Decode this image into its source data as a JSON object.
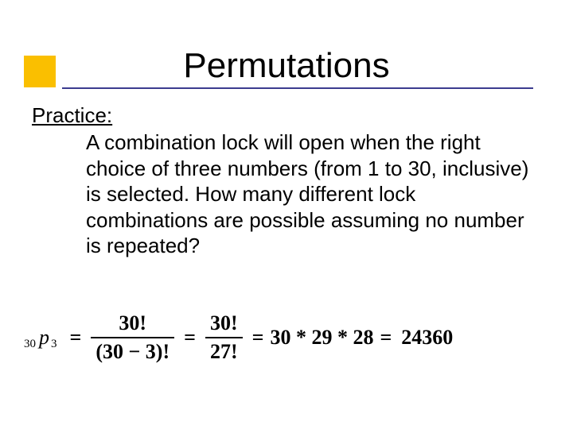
{
  "slide": {
    "title": "Permutations",
    "practice_label": "Practice:",
    "problem_text": "A combination lock will open when the right choice of three numbers (from 1 to 30, inclusive) is selected. How many different lock combinations are possible assuming no number is repeated?",
    "formula": {
      "n": "30",
      "symbol": "p",
      "r": "3",
      "frac1_num": "30!",
      "frac1_den": "(30 − 3)!",
      "frac2_num": "30!",
      "frac2_den": "27!",
      "product": "30 * 29 * 28",
      "result": "24360"
    },
    "colors": {
      "bullet": "#fabf00",
      "underline": "#3b3b8f",
      "text": "#000000",
      "background": "#ffffff"
    },
    "fonts": {
      "title_size_pt": 44,
      "body_size_pt": 26,
      "formula_family": "Times New Roman",
      "body_family": "Comic Sans MS"
    }
  }
}
